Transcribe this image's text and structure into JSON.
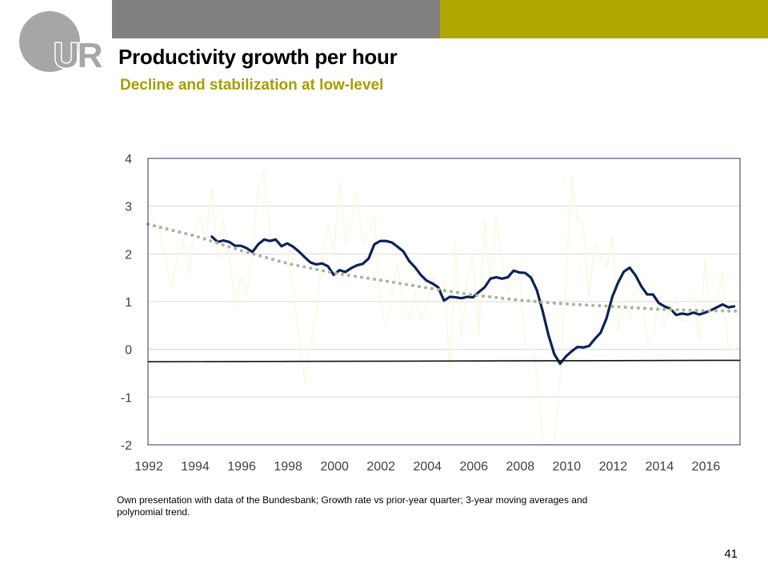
{
  "header": {
    "title": "Productivity growth per hour",
    "subtitle": "Decline and stabilization at low-level",
    "logo_text": "UR"
  },
  "colors": {
    "grey_bar": "#808080",
    "olive_bar": "#b0a800",
    "subtitle": "#a59d00",
    "logo": "#a6a6a6",
    "moving_average": "#0a2458",
    "quarterly": "#fbf8dc",
    "trend": "#a9b59a",
    "baseline": "#111111",
    "gridline": "#d9d9d9",
    "axis_text": "#404040",
    "plot_border": "#1f3864"
  },
  "footnote": "Own presentation with data of the Bundesbank; Growth rate vs prior-year quarter; 3-year  moving averages and polynomial trend.",
  "page_number": "41",
  "chart_data": {
    "type": "line",
    "title": "",
    "xlabel": "",
    "ylabel": "",
    "xlim": [
      1992,
      2017.5
    ],
    "ylim": [
      -2,
      4
    ],
    "yticks": [
      -2,
      -1,
      0,
      1,
      2,
      3,
      4
    ],
    "xticks": [
      1992,
      1994,
      1996,
      1998,
      2000,
      2002,
      2004,
      2006,
      2008,
      2010,
      2012,
      2014,
      2016
    ],
    "grid": true,
    "legend": "none",
    "series": [
      {
        "style": "thin line, very light yellow",
        "points": [
          [
            1992.0,
            3.0
          ],
          [
            1992.25,
            2.7
          ],
          [
            1992.5,
            2.5
          ],
          [
            1992.75,
            1.9
          ],
          [
            1993.0,
            1.3
          ],
          [
            1993.25,
            1.9
          ],
          [
            1993.5,
            2.3
          ],
          [
            1993.75,
            1.6
          ],
          [
            1994.0,
            2.5
          ],
          [
            1994.25,
            2.8
          ],
          [
            1994.5,
            2.3
          ],
          [
            1994.75,
            3.4
          ],
          [
            1995.0,
            1.9
          ],
          [
            1995.25,
            2.7
          ],
          [
            1995.5,
            2.0
          ],
          [
            1995.75,
            0.9
          ],
          [
            1996.0,
            1.5
          ],
          [
            1996.25,
            1.1
          ],
          [
            1996.5,
            2.0
          ],
          [
            1996.75,
            3.4
          ],
          [
            1997.0,
            3.7
          ],
          [
            1997.25,
            2.4
          ],
          [
            1997.5,
            2.2
          ],
          [
            1997.75,
            2.1
          ],
          [
            1998.0,
            2.0
          ],
          [
            1998.25,
            1.3
          ],
          [
            1998.5,
            0.2
          ],
          [
            1998.75,
            -0.7
          ],
          [
            1999.0,
            0.1
          ],
          [
            1999.25,
            0.7
          ],
          [
            1999.5,
            2.0
          ],
          [
            1999.75,
            2.6
          ],
          [
            2000.0,
            2.0
          ],
          [
            2000.25,
            3.5
          ],
          [
            2000.5,
            2.2
          ],
          [
            2000.75,
            2.6
          ],
          [
            2001.0,
            3.3
          ],
          [
            2001.25,
            2.2
          ],
          [
            2001.5,
            2.4
          ],
          [
            2001.75,
            2.8
          ],
          [
            2002.0,
            1.0
          ],
          [
            2002.25,
            0.5
          ],
          [
            2002.5,
            1.1
          ],
          [
            2002.75,
            1.8
          ],
          [
            2003.0,
            1.0
          ],
          [
            2003.25,
            0.6
          ],
          [
            2003.5,
            1.2
          ],
          [
            2003.75,
            0.6
          ],
          [
            2004.0,
            0.9
          ],
          [
            2004.25,
            1.5
          ],
          [
            2004.5,
            1.2
          ],
          [
            2004.75,
            1.4
          ],
          [
            2005.0,
            -0.4
          ],
          [
            2005.25,
            2.2
          ],
          [
            2005.5,
            0.2
          ],
          [
            2005.75,
            1.5
          ],
          [
            2006.0,
            2.0
          ],
          [
            2006.25,
            0.3
          ],
          [
            2006.5,
            2.7
          ],
          [
            2006.75,
            1.3
          ],
          [
            2007.0,
            2.8
          ],
          [
            2007.25,
            1.8
          ],
          [
            2007.5,
            1.2
          ],
          [
            2007.75,
            1.4
          ],
          [
            2008.0,
            1.6
          ],
          [
            2008.25,
            0.1
          ],
          [
            2008.5,
            0.1
          ],
          [
            2008.75,
            -0.5
          ],
          [
            2009.0,
            -2.0
          ],
          [
            2009.5,
            -2.0
          ],
          [
            2009.75,
            -0.6
          ],
          [
            2010.0,
            1.5
          ],
          [
            2010.25,
            3.6
          ],
          [
            2010.5,
            2.7
          ],
          [
            2010.75,
            2.6
          ],
          [
            2011.0,
            1.1
          ],
          [
            2011.25,
            2.2
          ],
          [
            2011.5,
            1.9
          ],
          [
            2011.75,
            1.7
          ],
          [
            2012.0,
            2.4
          ],
          [
            2012.25,
            0.4
          ],
          [
            2012.5,
            1.0
          ],
          [
            2012.75,
            0.6
          ],
          [
            2013.0,
            1.3
          ],
          [
            2013.25,
            1.2
          ],
          [
            2013.5,
            0.1
          ],
          [
            2013.75,
            0.3
          ],
          [
            2014.0,
            1.1
          ],
          [
            2014.25,
            0.5
          ],
          [
            2014.5,
            0.9
          ],
          [
            2014.75,
            1.1
          ],
          [
            2015.0,
            0.6
          ],
          [
            2015.25,
            0.6
          ],
          [
            2015.5,
            1.1
          ],
          [
            2015.75,
            0.2
          ],
          [
            2016.0,
            1.9
          ],
          [
            2016.25,
            0.6
          ],
          [
            2016.5,
            1.1
          ],
          [
            2016.75,
            1.6
          ],
          [
            2017.0,
            -0.1
          ],
          [
            2017.25,
            0.1
          ]
        ]
      },
      {
        "style": "thick line, dark navy",
        "points": [
          [
            1994.75,
            2.36
          ],
          [
            1995.0,
            2.25
          ],
          [
            1995.25,
            2.28
          ],
          [
            1995.5,
            2.25
          ],
          [
            1995.75,
            2.17
          ],
          [
            1996.0,
            2.17
          ],
          [
            1996.25,
            2.12
          ],
          [
            1996.5,
            2.04
          ],
          [
            1996.75,
            2.2
          ],
          [
            1997.0,
            2.3
          ],
          [
            1997.25,
            2.27
          ],
          [
            1997.5,
            2.3
          ],
          [
            1997.75,
            2.16
          ],
          [
            1998.0,
            2.22
          ],
          [
            1998.25,
            2.15
          ],
          [
            1998.5,
            2.05
          ],
          [
            1998.75,
            1.93
          ],
          [
            1999.0,
            1.82
          ],
          [
            1999.25,
            1.78
          ],
          [
            1999.5,
            1.8
          ],
          [
            1999.75,
            1.74
          ],
          [
            2000.0,
            1.56
          ],
          [
            2000.25,
            1.66
          ],
          [
            2000.5,
            1.62
          ],
          [
            2000.75,
            1.7
          ],
          [
            2001.0,
            1.76
          ],
          [
            2001.25,
            1.79
          ],
          [
            2001.5,
            1.9
          ],
          [
            2001.75,
            2.2
          ],
          [
            2002.0,
            2.27
          ],
          [
            2002.25,
            2.27
          ],
          [
            2002.5,
            2.24
          ],
          [
            2002.75,
            2.15
          ],
          [
            2003.0,
            2.05
          ],
          [
            2003.25,
            1.85
          ],
          [
            2003.5,
            1.72
          ],
          [
            2003.75,
            1.56
          ],
          [
            2004.0,
            1.44
          ],
          [
            2004.25,
            1.38
          ],
          [
            2004.5,
            1.3
          ],
          [
            2004.75,
            1.02
          ],
          [
            2005.0,
            1.1
          ],
          [
            2005.25,
            1.09
          ],
          [
            2005.5,
            1.07
          ],
          [
            2005.75,
            1.1
          ],
          [
            2006.0,
            1.09
          ],
          [
            2006.25,
            1.2
          ],
          [
            2006.5,
            1.3
          ],
          [
            2006.75,
            1.48
          ],
          [
            2007.0,
            1.51
          ],
          [
            2007.25,
            1.48
          ],
          [
            2007.5,
            1.51
          ],
          [
            2007.75,
            1.65
          ],
          [
            2008.0,
            1.61
          ],
          [
            2008.25,
            1.6
          ],
          [
            2008.5,
            1.5
          ],
          [
            2008.75,
            1.24
          ],
          [
            2009.0,
            0.8
          ],
          [
            2009.25,
            0.3
          ],
          [
            2009.5,
            -0.1
          ],
          [
            2009.75,
            -0.3
          ],
          [
            2010.0,
            -0.15
          ],
          [
            2010.25,
            -0.04
          ],
          [
            2010.5,
            0.05
          ],
          [
            2010.75,
            0.04
          ],
          [
            2011.0,
            0.07
          ],
          [
            2011.25,
            0.22
          ],
          [
            2011.5,
            0.35
          ],
          [
            2011.75,
            0.65
          ],
          [
            2012.0,
            1.1
          ],
          [
            2012.25,
            1.4
          ],
          [
            2012.5,
            1.63
          ],
          [
            2012.75,
            1.71
          ],
          [
            2013.0,
            1.55
          ],
          [
            2013.25,
            1.32
          ],
          [
            2013.5,
            1.15
          ],
          [
            2013.75,
            1.15
          ],
          [
            2014.0,
            0.97
          ],
          [
            2014.25,
            0.9
          ],
          [
            2014.5,
            0.85
          ],
          [
            2014.75,
            0.72
          ],
          [
            2015.0,
            0.75
          ],
          [
            2015.25,
            0.73
          ],
          [
            2015.5,
            0.77
          ],
          [
            2015.75,
            0.73
          ],
          [
            2016.0,
            0.77
          ],
          [
            2016.25,
            0.82
          ],
          [
            2016.5,
            0.88
          ],
          [
            2016.75,
            0.94
          ],
          [
            2017.0,
            0.88
          ],
          [
            2017.25,
            0.9
          ]
        ]
      },
      {
        "style": "dotted line, sage green",
        "points": [
          [
            1992.0,
            2.62
          ],
          [
            1994.0,
            2.38
          ],
          [
            1996.0,
            2.07
          ],
          [
            1998.0,
            1.8
          ],
          [
            2000.0,
            1.6
          ],
          [
            2002.0,
            1.45
          ],
          [
            2004.0,
            1.29
          ],
          [
            2006.0,
            1.14
          ],
          [
            2008.0,
            1.03
          ],
          [
            2010.0,
            0.95
          ],
          [
            2012.0,
            0.9
          ],
          [
            2014.0,
            0.84
          ],
          [
            2016.0,
            0.81
          ],
          [
            2017.5,
            0.8
          ]
        ]
      },
      {
        "style": "thin line, black",
        "points": [
          [
            1992.0,
            -0.26
          ],
          [
            2017.5,
            -0.23
          ]
        ]
      }
    ]
  }
}
